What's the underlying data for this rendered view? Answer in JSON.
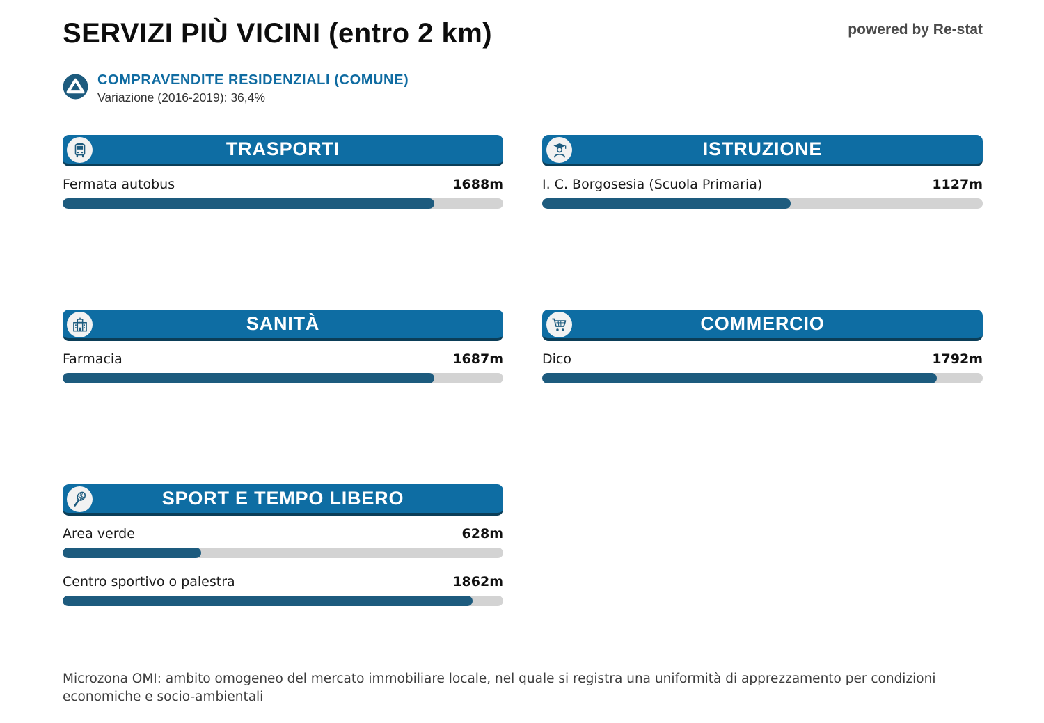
{
  "header": {
    "title": "SERVIZI PIÙ VICINI (entro 2 km)",
    "powered_by": "powered by Re-stat"
  },
  "summary": {
    "icon": "trend-triangle-up-icon",
    "title": "COMPRAVENDITE RESIDENZIALI (COMUNE)",
    "subtitle": "Variazione (2016-2019): 36,4%"
  },
  "colors": {
    "header_blue": "#0e6da3",
    "header_border": "#0b3e58",
    "bar_fill": "#1d5b7e",
    "bar_track": "#d3d3d3",
    "summary_blue": "#0f6ba1"
  },
  "sections": [
    {
      "title": "TRASPORTI",
      "icon": "bus-icon",
      "items": [
        {
          "label": "Fermata autobus",
          "value": "1688m",
          "pct": 84.4
        }
      ]
    },
    {
      "title": "ISTRUZIONE",
      "icon": "graduate-icon",
      "items": [
        {
          "label": "I. C. Borgosesia (Scuola Primaria)",
          "value": "1127m",
          "pct": 56.4
        }
      ]
    },
    {
      "title": "SANITÀ",
      "icon": "hospital-icon",
      "items": [
        {
          "label": "Farmacia",
          "value": "1687m",
          "pct": 84.3
        }
      ]
    },
    {
      "title": "COMMERCIO",
      "icon": "shopping-cart-icon",
      "items": [
        {
          "label": "Dico",
          "value": "1792m",
          "pct": 89.6
        }
      ]
    },
    {
      "title": "SPORT E TEMPO LIBERO",
      "icon": "tennis-racket-icon",
      "items": [
        {
          "label": "Area verde",
          "value": "628m",
          "pct": 31.4
        },
        {
          "label": "Centro sportivo o palestra",
          "value": "1862m",
          "pct": 93.1
        }
      ]
    }
  ],
  "footer": {
    "note": "Microzona OMI: ambito omogeneo del mercato immobiliare locale, nel quale si registra una uniformità di apprezzamento per condizioni economiche e socio-ambientali"
  },
  "chart_data": {
    "type": "bar",
    "title": "SERVIZI PIÙ VICINI (entro 2 km)",
    "orientation": "horizontal",
    "unit": "m",
    "xlim": [
      0,
      2000
    ],
    "series": [
      {
        "group": "TRASPORTI",
        "name": "Fermata autobus",
        "value": 1688
      },
      {
        "group": "ISTRUZIONE",
        "name": "I. C. Borgosesia (Scuola Primaria)",
        "value": 1127
      },
      {
        "group": "SANITÀ",
        "name": "Farmacia",
        "value": 1687
      },
      {
        "group": "COMMERCIO",
        "name": "Dico",
        "value": 1792
      },
      {
        "group": "SPORT E TEMPO LIBERO",
        "name": "Area verde",
        "value": 628
      },
      {
        "group": "SPORT E TEMPO LIBERO",
        "name": "Centro sportivo o palestra",
        "value": 1862
      }
    ]
  }
}
